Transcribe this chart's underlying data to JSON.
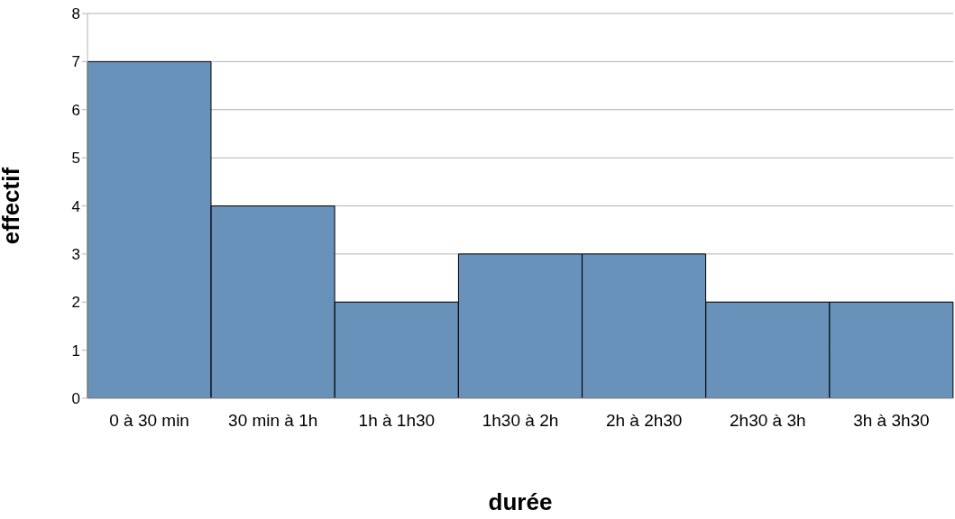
{
  "chart_data": {
    "type": "bar",
    "xlabel": "durée",
    "ylabel": "effectif",
    "categories": [
      "0 à 30 min",
      "30 min à 1h",
      "1h à 1h30",
      "1h30 à 2h",
      "2h à 2h30",
      "2h30 à 3h",
      "3h à 3h30"
    ],
    "values": [
      7,
      4,
      2,
      3,
      3,
      2,
      2
    ],
    "color": "#6892ba",
    "ylim": [
      0,
      8
    ],
    "yticks": [
      0,
      1,
      2,
      3,
      4,
      5,
      6,
      7,
      8
    ],
    "grid": "y"
  }
}
